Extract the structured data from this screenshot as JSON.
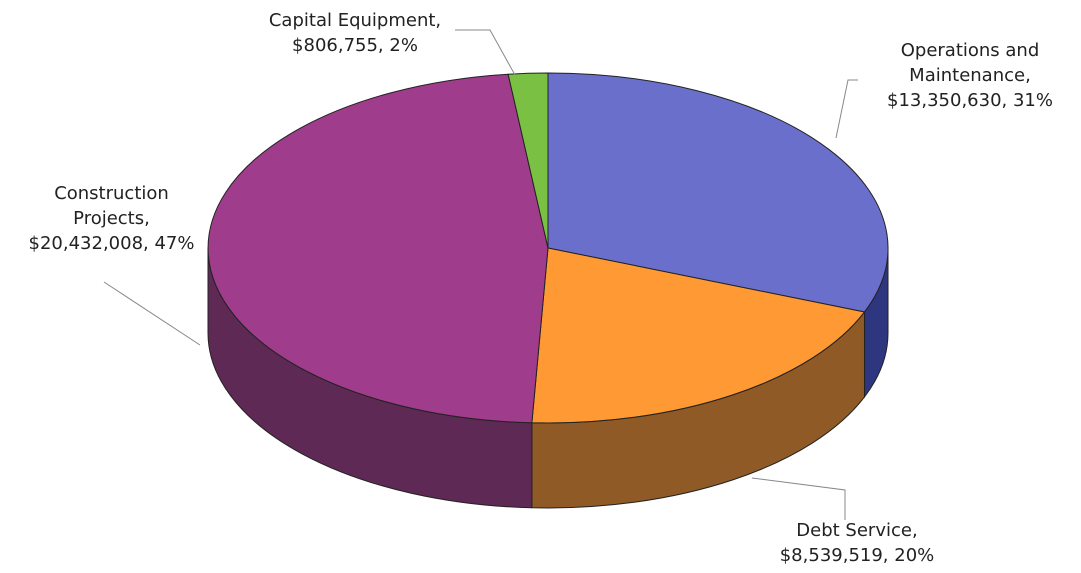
{
  "chart_data": {
    "type": "pie",
    "labels": [
      "Operations and Maintenance, $13,350,630, 31%",
      "Debt Service, $8,539,519, 20%",
      "Construction Projects, $20,432,008, 47%",
      "Capital Equipment, $806,755, 2%"
    ],
    "values": [
      13350630,
      8539519,
      20432008,
      806755
    ],
    "colors": [
      "#6b6fcc",
      "#ff9933",
      "#a03c8c",
      "#7ac143"
    ],
    "side_colors": [
      "#2e3680",
      "#8f5a25",
      "#5e2a55",
      "#3f7a22"
    ]
  }
}
